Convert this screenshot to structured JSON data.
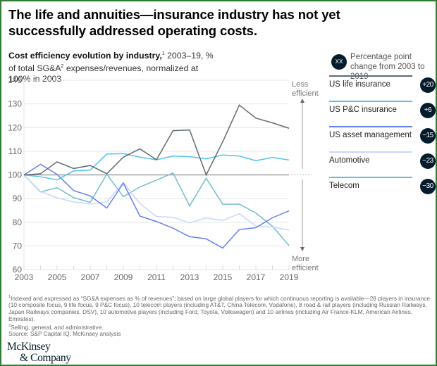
{
  "title": "The life and annuities—insurance industry has not yet successfully addressed operating costs.",
  "subtitle": {
    "bold": "Cost efficiency evolution by industry,",
    "sup1": "1",
    "rest1": " 2003–19, % of total SG&A",
    "sup2": "2",
    "rest2": " expenses/revenues, normalized at 100% in 2003"
  },
  "legend_key": {
    "badge": "XX",
    "text": "Percentage point change from 2003 to 2019"
  },
  "chart_data": {
    "type": "line",
    "title": "Cost efficiency evolution by industry, 2003–19, % of total SG&A expenses/revenues, normalized at 100% in 2003",
    "xlabel": "",
    "ylabel": "",
    "x": [
      2003,
      2004,
      2005,
      2006,
      2007,
      2008,
      2009,
      2010,
      2011,
      2012,
      2013,
      2014,
      2015,
      2016,
      2017,
      2018,
      2019
    ],
    "x_tick_labels": [
      "2003",
      "2005",
      "2007",
      "2009",
      "2011",
      "2013",
      "2015",
      "2017",
      "2019"
    ],
    "y_tick_labels": [
      "60",
      "70",
      "80",
      "90",
      "100",
      "110",
      "120",
      "130",
      "140"
    ],
    "ylim": [
      60,
      140
    ],
    "grid": true,
    "reference_line": 100,
    "annotations": {
      "up": "Less efficient",
      "down": "More efficient"
    },
    "legend_position": "right",
    "series": [
      {
        "name": "US life insurance",
        "change": "+20",
        "color": "#5f6b73",
        "values": [
          100,
          100.5,
          105.5,
          102.7,
          104,
          100.5,
          107.5,
          111,
          106.4,
          118.7,
          119,
          100,
          114,
          129.5,
          124,
          122,
          119.7
        ]
      },
      {
        "name": "US P&C insurance",
        "change": "+6",
        "color": "#4fc3ef",
        "values": [
          100,
          99.2,
          97.9,
          101.7,
          102,
          108.8,
          109,
          107.5,
          106.4,
          108,
          107.7,
          106.8,
          108.4,
          108,
          106,
          107.4,
          106.3
        ]
      },
      {
        "name": "US asset management",
        "change": "−15",
        "color": "#6580f0",
        "values": [
          100,
          104.5,
          100.2,
          93.4,
          91.1,
          86,
          96.5,
          82.6,
          80.3,
          77.5,
          73.9,
          73,
          69.1,
          76.9,
          77.7,
          81.9,
          84.8
        ]
      },
      {
        "name": "Automotive",
        "change": "−23",
        "color": "#c9d5fb",
        "values": [
          100,
          93,
          90.3,
          88.6,
          87.7,
          88.6,
          96.8,
          87.9,
          82.4,
          82.1,
          79.7,
          81.8,
          80.8,
          83.6,
          78.4,
          78,
          76.7
        ]
      },
      {
        "name": "Telecom",
        "change": "−30",
        "color": "#72bdcc",
        "values": [
          100,
          92.8,
          94.6,
          90.4,
          88.4,
          100.3,
          90.8,
          94.9,
          97.8,
          100.8,
          86.9,
          98.6,
          87.6,
          87.7,
          83.9,
          78.3,
          70.2
        ]
      }
    ]
  },
  "footnotes": {
    "note1_sup": "1",
    "note1": "Indexed and expressed as “SG&A expenses as % of revenues”; based on large global players for which continuous reporting is available—28 players in insurance (10 composite focus, 9 life focus, 9 P&C focus), 10 telecom players (including AT&T, China Telecom, Vodafone), 8 road & rail players (including Russian Railways, Japan Railways companies, DSV), 10 automotive players (including Ford, Toyota, Volkswagen) and 10 airlines (including Air France-KLM, American Airlines, Emirates).",
    "note2_sup": "2",
    "note2": "Selling, general, and administrative.",
    "source": "Source: S&P Capital IQ; McKinsey analysis"
  },
  "logo": {
    "line1": "McKinsey",
    "line2": "& Company"
  }
}
